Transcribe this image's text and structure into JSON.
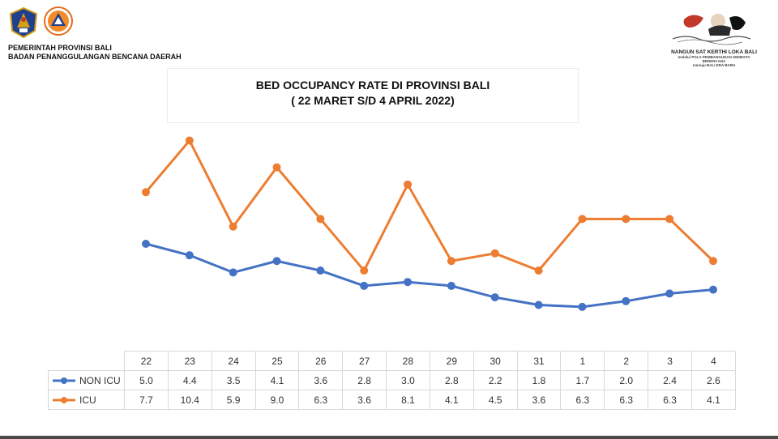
{
  "header": {
    "org_line1": "PEMERINTAH PROVINSI BALI",
    "org_line2": "BADAN PENANGGULANGAN BENCANA DAERAH",
    "slogan": "NANGUN SAT KERTHI LOKA BALI",
    "slogan_sub1": "melalui POLA PEMBANGUNAN SEMESTA",
    "slogan_sub2": "BERENCANA",
    "slogan_sub3": "menuju BALI ERA BARU"
  },
  "colors": {
    "non_icu": "#4472C4",
    "icu": "#ED7D31"
  },
  "chart_data": {
    "type": "line",
    "title": "BED OCCUPANCY RATE DI PROVINSI BALI",
    "subtitle": "( 22 MARET S/D 4 APRIL 2022)",
    "categories": [
      "22",
      "23",
      "24",
      "25",
      "26",
      "27",
      "28",
      "29",
      "30",
      "31",
      "1",
      "2",
      "3",
      "4"
    ],
    "series": [
      {
        "name": "NON ICU",
        "values": [
          5.0,
          4.4,
          3.5,
          4.1,
          3.6,
          2.8,
          3.0,
          2.8,
          2.2,
          1.8,
          1.7,
          2.0,
          2.4,
          2.6
        ]
      },
      {
        "name": "ICU",
        "values": [
          7.7,
          10.4,
          5.9,
          9.0,
          6.3,
          3.6,
          8.1,
          4.1,
          4.5,
          3.6,
          6.3,
          6.3,
          6.3,
          4.1
        ]
      }
    ],
    "value_labels": {
      "NON ICU": [
        "5.0",
        "4.4",
        "3.5",
        "4.1",
        "3.6",
        "2.8",
        "3.0",
        "2.8",
        "2.2",
        "1.8",
        "1.7",
        "2.0",
        "2.4",
        "2.6"
      ],
      "ICU": [
        "7.7",
        "10.4",
        "5.9",
        "9.0",
        "6.3",
        "3.6",
        "8.1",
        "4.1",
        "4.5",
        "3.6",
        "6.3",
        "6.3",
        "6.3",
        "4.1"
      ]
    },
    "xlabel": "",
    "ylabel": "",
    "grid": false,
    "data_table": true,
    "legend": "data-table"
  }
}
